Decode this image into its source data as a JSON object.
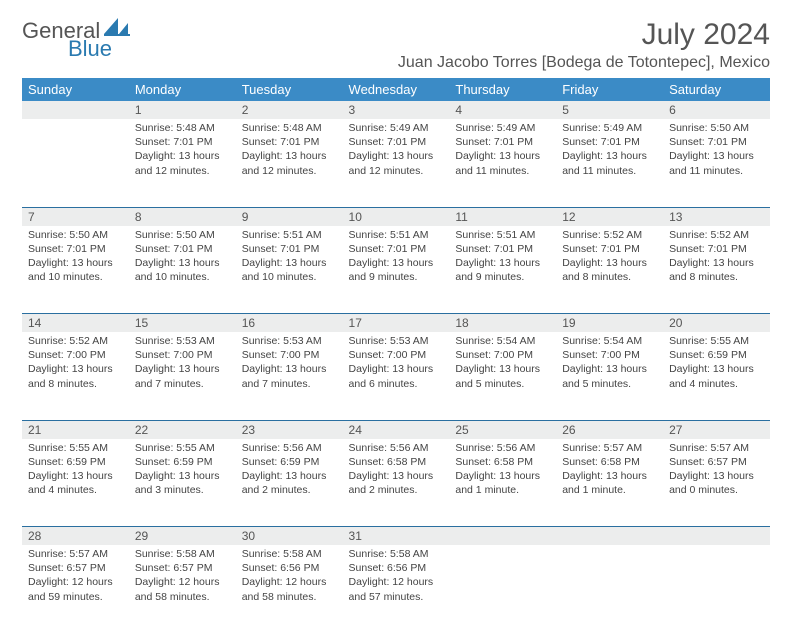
{
  "brand": {
    "text1": "General",
    "text2": "Blue"
  },
  "title": "July 2024",
  "location": "Juan Jacobo Torres [Bodega de Totontepec], Mexico",
  "colors": {
    "header_bg": "#3b8bc6",
    "header_text": "#ffffff",
    "brand_blue": "#2a7ab0",
    "brand_gray": "#555555",
    "daynum_bg": "#eceded",
    "rule": "#2a6fa0",
    "body_text": "#444444"
  },
  "typography": {
    "title_fontsize": 30,
    "location_fontsize": 16,
    "th_fontsize": 13,
    "daynum_fontsize": 12,
    "cell_fontsize": 10.5
  },
  "weekdays": [
    "Sunday",
    "Monday",
    "Tuesday",
    "Wednesday",
    "Thursday",
    "Friday",
    "Saturday"
  ],
  "weeks": [
    {
      "nums": [
        "",
        "1",
        "2",
        "3",
        "4",
        "5",
        "6"
      ],
      "cells": [
        null,
        {
          "sunrise": "Sunrise: 5:48 AM",
          "sunset": "Sunset: 7:01 PM",
          "day1": "Daylight: 13 hours",
          "day2": "and 12 minutes."
        },
        {
          "sunrise": "Sunrise: 5:48 AM",
          "sunset": "Sunset: 7:01 PM",
          "day1": "Daylight: 13 hours",
          "day2": "and 12 minutes."
        },
        {
          "sunrise": "Sunrise: 5:49 AM",
          "sunset": "Sunset: 7:01 PM",
          "day1": "Daylight: 13 hours",
          "day2": "and 12 minutes."
        },
        {
          "sunrise": "Sunrise: 5:49 AM",
          "sunset": "Sunset: 7:01 PM",
          "day1": "Daylight: 13 hours",
          "day2": "and 11 minutes."
        },
        {
          "sunrise": "Sunrise: 5:49 AM",
          "sunset": "Sunset: 7:01 PM",
          "day1": "Daylight: 13 hours",
          "day2": "and 11 minutes."
        },
        {
          "sunrise": "Sunrise: 5:50 AM",
          "sunset": "Sunset: 7:01 PM",
          "day1": "Daylight: 13 hours",
          "day2": "and 11 minutes."
        }
      ]
    },
    {
      "nums": [
        "7",
        "8",
        "9",
        "10",
        "11",
        "12",
        "13"
      ],
      "cells": [
        {
          "sunrise": "Sunrise: 5:50 AM",
          "sunset": "Sunset: 7:01 PM",
          "day1": "Daylight: 13 hours",
          "day2": "and 10 minutes."
        },
        {
          "sunrise": "Sunrise: 5:50 AM",
          "sunset": "Sunset: 7:01 PM",
          "day1": "Daylight: 13 hours",
          "day2": "and 10 minutes."
        },
        {
          "sunrise": "Sunrise: 5:51 AM",
          "sunset": "Sunset: 7:01 PM",
          "day1": "Daylight: 13 hours",
          "day2": "and 10 minutes."
        },
        {
          "sunrise": "Sunrise: 5:51 AM",
          "sunset": "Sunset: 7:01 PM",
          "day1": "Daylight: 13 hours",
          "day2": "and 9 minutes."
        },
        {
          "sunrise": "Sunrise: 5:51 AM",
          "sunset": "Sunset: 7:01 PM",
          "day1": "Daylight: 13 hours",
          "day2": "and 9 minutes."
        },
        {
          "sunrise": "Sunrise: 5:52 AM",
          "sunset": "Sunset: 7:01 PM",
          "day1": "Daylight: 13 hours",
          "day2": "and 8 minutes."
        },
        {
          "sunrise": "Sunrise: 5:52 AM",
          "sunset": "Sunset: 7:01 PM",
          "day1": "Daylight: 13 hours",
          "day2": "and 8 minutes."
        }
      ]
    },
    {
      "nums": [
        "14",
        "15",
        "16",
        "17",
        "18",
        "19",
        "20"
      ],
      "cells": [
        {
          "sunrise": "Sunrise: 5:52 AM",
          "sunset": "Sunset: 7:00 PM",
          "day1": "Daylight: 13 hours",
          "day2": "and 8 minutes."
        },
        {
          "sunrise": "Sunrise: 5:53 AM",
          "sunset": "Sunset: 7:00 PM",
          "day1": "Daylight: 13 hours",
          "day2": "and 7 minutes."
        },
        {
          "sunrise": "Sunrise: 5:53 AM",
          "sunset": "Sunset: 7:00 PM",
          "day1": "Daylight: 13 hours",
          "day2": "and 7 minutes."
        },
        {
          "sunrise": "Sunrise: 5:53 AM",
          "sunset": "Sunset: 7:00 PM",
          "day1": "Daylight: 13 hours",
          "day2": "and 6 minutes."
        },
        {
          "sunrise": "Sunrise: 5:54 AM",
          "sunset": "Sunset: 7:00 PM",
          "day1": "Daylight: 13 hours",
          "day2": "and 5 minutes."
        },
        {
          "sunrise": "Sunrise: 5:54 AM",
          "sunset": "Sunset: 7:00 PM",
          "day1": "Daylight: 13 hours",
          "day2": "and 5 minutes."
        },
        {
          "sunrise": "Sunrise: 5:55 AM",
          "sunset": "Sunset: 6:59 PM",
          "day1": "Daylight: 13 hours",
          "day2": "and 4 minutes."
        }
      ]
    },
    {
      "nums": [
        "21",
        "22",
        "23",
        "24",
        "25",
        "26",
        "27"
      ],
      "cells": [
        {
          "sunrise": "Sunrise: 5:55 AM",
          "sunset": "Sunset: 6:59 PM",
          "day1": "Daylight: 13 hours",
          "day2": "and 4 minutes."
        },
        {
          "sunrise": "Sunrise: 5:55 AM",
          "sunset": "Sunset: 6:59 PM",
          "day1": "Daylight: 13 hours",
          "day2": "and 3 minutes."
        },
        {
          "sunrise": "Sunrise: 5:56 AM",
          "sunset": "Sunset: 6:59 PM",
          "day1": "Daylight: 13 hours",
          "day2": "and 2 minutes."
        },
        {
          "sunrise": "Sunrise: 5:56 AM",
          "sunset": "Sunset: 6:58 PM",
          "day1": "Daylight: 13 hours",
          "day2": "and 2 minutes."
        },
        {
          "sunrise": "Sunrise: 5:56 AM",
          "sunset": "Sunset: 6:58 PM",
          "day1": "Daylight: 13 hours",
          "day2": "and 1 minute."
        },
        {
          "sunrise": "Sunrise: 5:57 AM",
          "sunset": "Sunset: 6:58 PM",
          "day1": "Daylight: 13 hours",
          "day2": "and 1 minute."
        },
        {
          "sunrise": "Sunrise: 5:57 AM",
          "sunset": "Sunset: 6:57 PM",
          "day1": "Daylight: 13 hours",
          "day2": "and 0 minutes."
        }
      ]
    },
    {
      "nums": [
        "28",
        "29",
        "30",
        "31",
        "",
        "",
        ""
      ],
      "cells": [
        {
          "sunrise": "Sunrise: 5:57 AM",
          "sunset": "Sunset: 6:57 PM",
          "day1": "Daylight: 12 hours",
          "day2": "and 59 minutes."
        },
        {
          "sunrise": "Sunrise: 5:58 AM",
          "sunset": "Sunset: 6:57 PM",
          "day1": "Daylight: 12 hours",
          "day2": "and 58 minutes."
        },
        {
          "sunrise": "Sunrise: 5:58 AM",
          "sunset": "Sunset: 6:56 PM",
          "day1": "Daylight: 12 hours",
          "day2": "and 58 minutes."
        },
        {
          "sunrise": "Sunrise: 5:58 AM",
          "sunset": "Sunset: 6:56 PM",
          "day1": "Daylight: 12 hours",
          "day2": "and 57 minutes."
        },
        null,
        null,
        null
      ]
    }
  ]
}
